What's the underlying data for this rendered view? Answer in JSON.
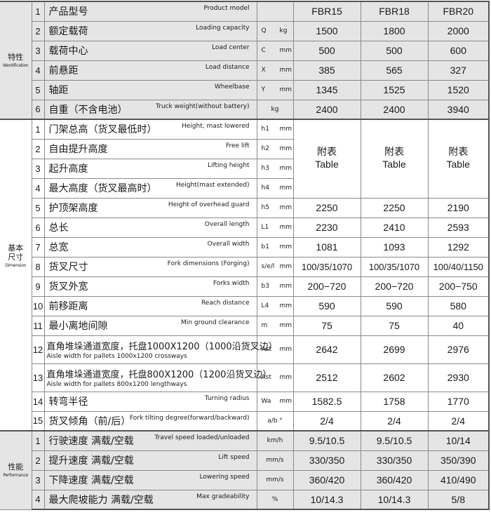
{
  "colors": {
    "section_bg": "#e5e5e5",
    "border": "#8a8a8a"
  },
  "models": [
    "FBR15",
    "FBR18",
    "FBR20"
  ],
  "table_note": {
    "cn": "附表",
    "en": "Table"
  },
  "sections": [
    {
      "cn": "特性",
      "en": "Identification",
      "grey": true,
      "rows": [
        {
          "no": "1",
          "cn": "产品型号",
          "en": "Product model",
          "sym": "",
          "unit": "",
          "values": [
            "FBR15",
            "FBR18",
            "FBR20"
          ]
        },
        {
          "no": "2",
          "cn": "额定载荷",
          "en": "Loading capacity",
          "sym": "Q",
          "unit": "kg",
          "values": [
            "1500",
            "1800",
            "2000"
          ]
        },
        {
          "no": "3",
          "cn": "载荷中心",
          "en": "Load center",
          "sym": "C",
          "unit": "mm",
          "values": [
            "500",
            "500",
            "600"
          ]
        },
        {
          "no": "4",
          "cn": "前悬距",
          "en": "Load distance",
          "sym": "X",
          "unit": "mm",
          "values": [
            "385",
            "565",
            "327"
          ]
        },
        {
          "no": "5",
          "cn": "轴距",
          "en": "Wheelbase",
          "sym": "Y",
          "unit": "mm",
          "values": [
            "1345",
            "1525",
            "1520"
          ]
        },
        {
          "no": "6",
          "cn": "自重（不含电池）",
          "en": "Truck weight(without battery)",
          "sym": "",
          "unit": "kg",
          "values": [
            "2400",
            "2400",
            "3940"
          ]
        }
      ]
    },
    {
      "cn": "基本尺寸",
      "en": "Dimension",
      "grey": false,
      "rows": [
        {
          "no": "1",
          "cn": "门架总高（货叉最低时）",
          "en": "Height, mast lowered",
          "sym": "h1",
          "unit": "mm",
          "values": null
        },
        {
          "no": "2",
          "cn": "自由提升高度",
          "en": "Free lift",
          "sym": "h2",
          "unit": "mm",
          "values": null
        },
        {
          "no": "3",
          "cn": "起升高度",
          "en": "Lifting height",
          "sym": "h3",
          "unit": "mm",
          "values": null
        },
        {
          "no": "4",
          "cn": "最大高度（货叉最高时）",
          "en": "Height(mast extended)",
          "sym": "h4",
          "unit": "mm",
          "values": null
        },
        {
          "no": "5",
          "cn": "护顶架高度",
          "en": "Height of overhead guard",
          "sym": "h5",
          "unit": "mm",
          "values": [
            "2250",
            "2250",
            "2190"
          ]
        },
        {
          "no": "6",
          "cn": "总长",
          "en": "Overall length",
          "sym": "L1",
          "unit": "mm",
          "values": [
            "2230",
            "2410",
            "2593"
          ]
        },
        {
          "no": "7",
          "cn": "总宽",
          "en": "Overall width",
          "sym": "b1",
          "unit": "mm",
          "values": [
            "1081",
            "1093",
            "1292"
          ]
        },
        {
          "no": "8",
          "cn": "货叉尺寸",
          "en": "Fork dimensions (Forging)",
          "sym": "s/e/l",
          "unit": "mm",
          "values": [
            "100/35/1070",
            "100/35/1070",
            "100/40/1150"
          ]
        },
        {
          "no": "9",
          "cn": "货叉外宽",
          "en": "Forks width",
          "sym": "b3",
          "unit": "mm",
          "values": [
            "200−720",
            "200−720",
            "200−750"
          ]
        },
        {
          "no": "10",
          "cn": "前移距离",
          "en": "Reach distance",
          "sym": "L4",
          "unit": "mm",
          "values": [
            "590",
            "590",
            "580"
          ]
        },
        {
          "no": "11",
          "cn": "最小离地间隙",
          "en": "Min ground clearance",
          "sym": "m",
          "unit": "mm",
          "values": [
            "75",
            "75",
            "40"
          ]
        },
        {
          "no": "12",
          "cn": "直角堆垛通道宽度，托盘1000X1200（1000沿货叉边）",
          "en": "Aisle width for pallets 1000x1200 crossways",
          "two_line": true,
          "sym": "Ast",
          "unit": "mm",
          "values": [
            "2642",
            "2699",
            "2976"
          ]
        },
        {
          "no": "13",
          "cn": "直角堆垛通道宽度，托盘800X1200（1200沿货叉边）",
          "en": "Aisle width for pallets 800x1200 lengthways",
          "two_line": true,
          "sym": "Ast",
          "unit": "mm",
          "values": [
            "2512",
            "2602",
            "2930"
          ]
        },
        {
          "no": "14",
          "cn": "转弯半径",
          "en": "Turning radius",
          "sym": "Wa",
          "unit": "mm",
          "values": [
            "1582.5",
            "1758",
            "1770"
          ]
        },
        {
          "no": "15",
          "cn": "货叉倾角（前/后）",
          "en": "Fork tilting degree(forward/backward)",
          "sym": "",
          "unit": "a/b °",
          "values": [
            "2/4",
            "2/4",
            "2/4"
          ]
        }
      ]
    },
    {
      "cn": "性能",
      "en": "Performance",
      "grey": true,
      "rows": [
        {
          "no": "1",
          "cn": "行驶速度  满载/空载",
          "en": "Travel speed  loaded/unloaded",
          "sym": "",
          "unit": "km/h",
          "values": [
            "9.5/10.5",
            "9.5/10.5",
            "10/14"
          ]
        },
        {
          "no": "2",
          "cn": "提升速度  满载/空载",
          "en": "Lift speed",
          "sym": "",
          "unit": "mm/s",
          "values": [
            "330/350",
            "330/350",
            "350/390"
          ]
        },
        {
          "no": "3",
          "cn": "下降速度  满载/空载",
          "en": "Lowering speed",
          "sym": "",
          "unit": "mm/s",
          "values": [
            "360/420",
            "360/420",
            "410/490"
          ]
        },
        {
          "no": "4",
          "cn": "最大爬坡能力  满载/空载",
          "en": "Max gradeability",
          "sym": "",
          "unit": "%",
          "values": [
            "10/14.3",
            "10/14.3",
            "5/8"
          ]
        }
      ]
    }
  ]
}
